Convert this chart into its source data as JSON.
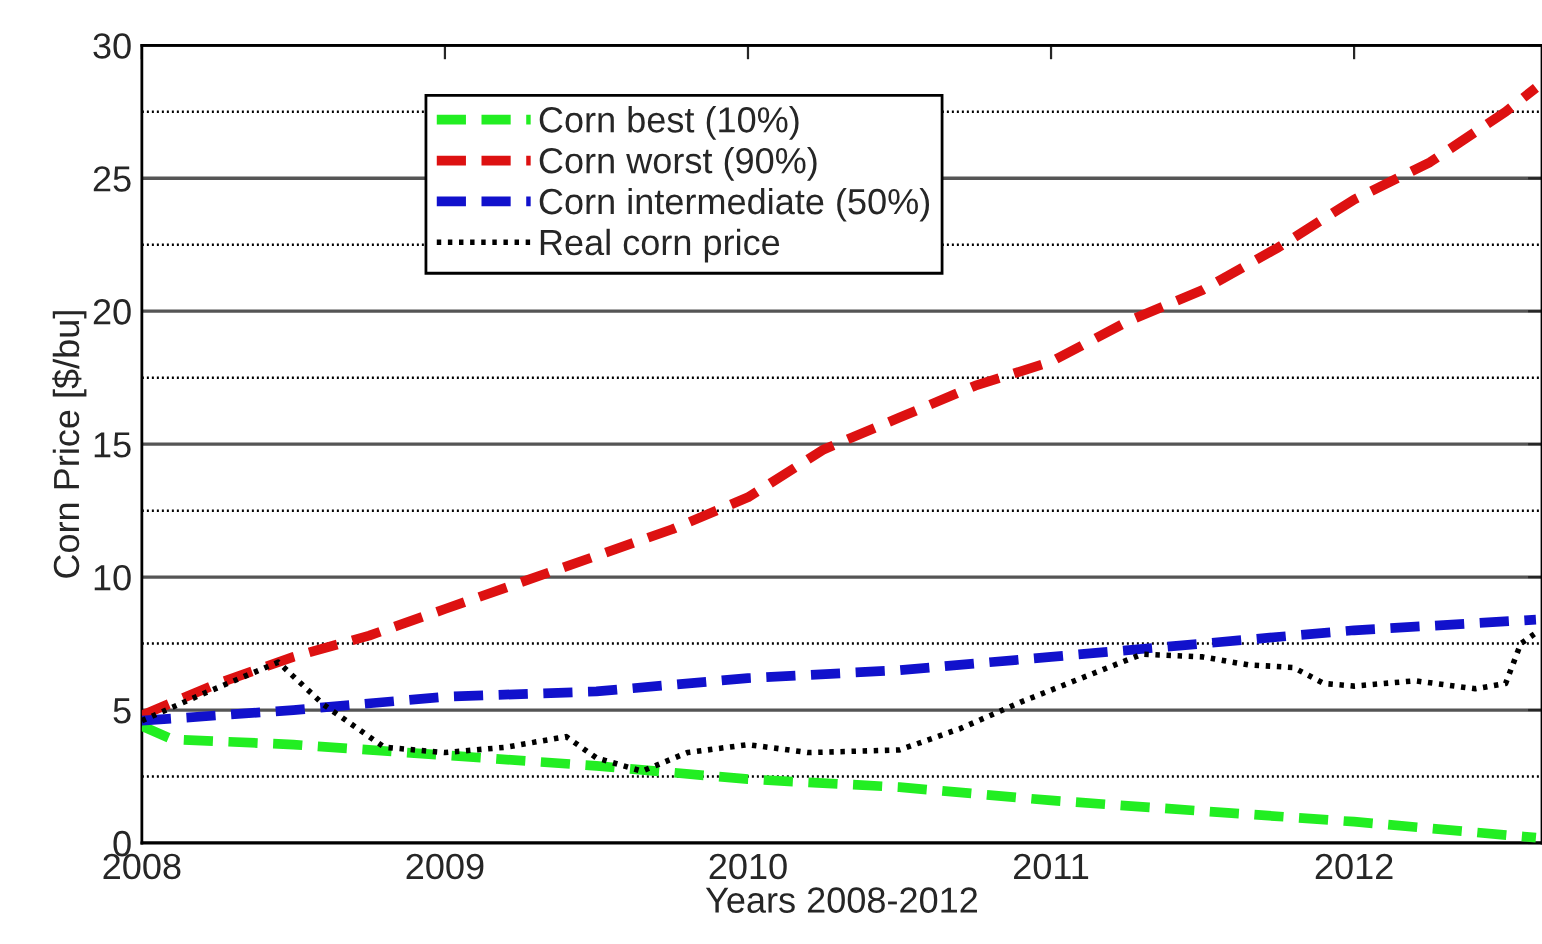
{
  "chart_data": {
    "type": "line",
    "xlabel": "Years 2008-2012",
    "ylabel": "Corn Price [$/bu]",
    "xlim": [
      2008,
      2012.62
    ],
    "xticks": [
      2008,
      2009,
      2010,
      2011,
      2012
    ],
    "ylim": [
      0,
      30
    ],
    "yticks": [
      0,
      5,
      10,
      15,
      20,
      25,
      30
    ],
    "grid": "y",
    "legend": "top left",
    "ref_lines": [
      {
        "axis": "y",
        "value": 2.5,
        "color": "#000000",
        "line_style": "dotted"
      },
      {
        "axis": "y",
        "value": 7.5,
        "color": "#000000",
        "line_style": "dotted"
      },
      {
        "axis": "y",
        "value": 12.5,
        "color": "#000000",
        "line_style": "dotted"
      },
      {
        "axis": "y",
        "value": 17.5,
        "color": "#000000",
        "line_style": "dotted"
      },
      {
        "axis": "y",
        "value": 22.5,
        "color": "#000000",
        "line_style": "dotted"
      },
      {
        "axis": "y",
        "value": 27.5,
        "color": "#000000",
        "line_style": "dotted"
      }
    ],
    "series": [
      {
        "name": "Corn best (10%)",
        "color": "#22ee22",
        "line_style": "dashed",
        "x": [
          2008,
          2008.1,
          2008.5,
          2009,
          2009.5,
          2010,
          2010.5,
          2011,
          2011.5,
          2012,
          2012.6
        ],
        "values": [
          4.4,
          3.9,
          3.7,
          3.3,
          2.9,
          2.4,
          2.1,
          1.6,
          1.2,
          0.8,
          0.2
        ]
      },
      {
        "name": "Corn worst (90%)",
        "color": "#dd1111",
        "line_style": "dashed",
        "x": [
          2008,
          2008.25,
          2008.5,
          2008.75,
          2009,
          2009.25,
          2009.5,
          2009.75,
          2010,
          2010.25,
          2010.5,
          2010.75,
          2011,
          2011.25,
          2011.5,
          2011.75,
          2012,
          2012.25,
          2012.5,
          2012.6
        ],
        "values": [
          4.8,
          6.0,
          7.0,
          7.8,
          8.8,
          9.8,
          10.8,
          11.8,
          13.0,
          14.8,
          16.0,
          17.2,
          18.1,
          19.6,
          20.8,
          22.4,
          24.2,
          25.6,
          27.5,
          28.4
        ]
      },
      {
        "name": "Corn intermediate (50%)",
        "color": "#1111cc",
        "line_style": "dashed",
        "x": [
          2008,
          2008.5,
          2009,
          2009.5,
          2010,
          2010.5,
          2011,
          2011.5,
          2012,
          2012.6
        ],
        "values": [
          4.6,
          5.0,
          5.5,
          5.7,
          6.2,
          6.5,
          7.0,
          7.5,
          8.0,
          8.4
        ]
      },
      {
        "name": "Real corn price",
        "color": "#000000",
        "line_style": "dotted",
        "x": [
          2008,
          2008.2,
          2008.45,
          2008.6,
          2008.8,
          2009,
          2009.2,
          2009.4,
          2009.5,
          2009.65,
          2009.8,
          2010,
          2010.2,
          2010.5,
          2010.7,
          2010.9,
          2011.1,
          2011.3,
          2011.5,
          2011.65,
          2011.8,
          2011.9,
          2012,
          2012.2,
          2012.4,
          2012.5,
          2012.55,
          2012.6
        ],
        "values": [
          4.6,
          5.6,
          6.8,
          5.2,
          3.6,
          3.4,
          3.6,
          4.0,
          3.2,
          2.7,
          3.4,
          3.7,
          3.4,
          3.5,
          4.3,
          5.3,
          6.2,
          7.1,
          7.0,
          6.7,
          6.6,
          6.0,
          5.9,
          6.1,
          5.8,
          6.0,
          7.5,
          7.9
        ]
      }
    ]
  }
}
